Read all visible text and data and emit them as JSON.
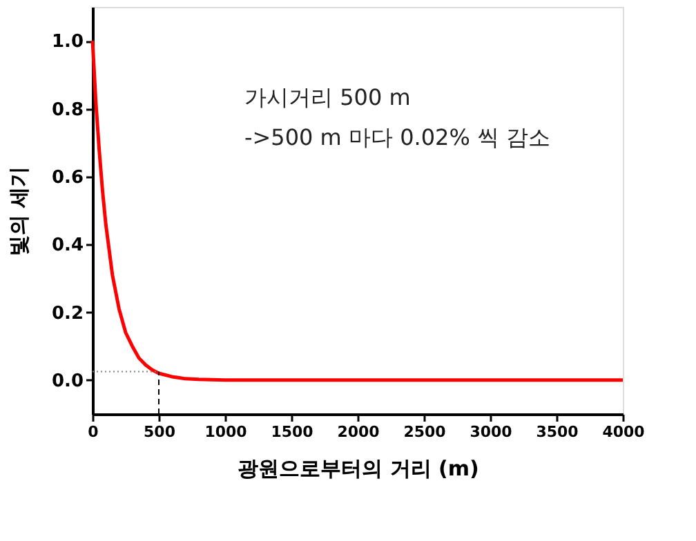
{
  "chart_data": {
    "type": "line",
    "xlabel": "광원으로부터의 거리 (m)",
    "ylabel": "빛의 세기",
    "annotations": [
      "가시거리 500 m",
      "->500 m 마다 0.02% 씩 감소"
    ],
    "x": [
      0,
      25,
      50,
      75,
      100,
      150,
      200,
      250,
      300,
      350,
      400,
      450,
      500,
      600,
      700,
      800,
      1000,
      1500,
      2000,
      3000,
      4000
    ],
    "series": [
      {
        "color": "#ff0000",
        "values": [
          1.0,
          0.82,
          0.68,
          0.56,
          0.46,
          0.31,
          0.21,
          0.14,
          0.1,
          0.065,
          0.045,
          0.03,
          0.02,
          0.01,
          0.004,
          0.002,
          0.0,
          0.0,
          0.0,
          0.0,
          0.0
        ]
      }
    ],
    "xlim": [
      0,
      4000
    ],
    "xticks": [
      0,
      500,
      1000,
      1500,
      2000,
      2500,
      3000,
      3500,
      4000
    ],
    "ylim": [
      -0.1,
      1.1
    ],
    "yticks": [
      {
        "value": 0,
        "label": "0.0"
      },
      {
        "value": 0.2,
        "label": "0.2"
      },
      {
        "value": 0.4,
        "label": "0.4"
      },
      {
        "value": 0.6,
        "label": "0.6"
      },
      {
        "value": 0.8,
        "label": "0.8"
      },
      {
        "value": 1.0,
        "label": "1.0"
      }
    ],
    "ref_lines": [
      {
        "axis": "y",
        "value": 0.025,
        "line_style": "dotted",
        "color": "#808080"
      },
      {
        "axis": "x",
        "value": 500,
        "line_style": "dashed",
        "color": "#000000"
      }
    ],
    "grid": false,
    "line_style": "solid"
  }
}
